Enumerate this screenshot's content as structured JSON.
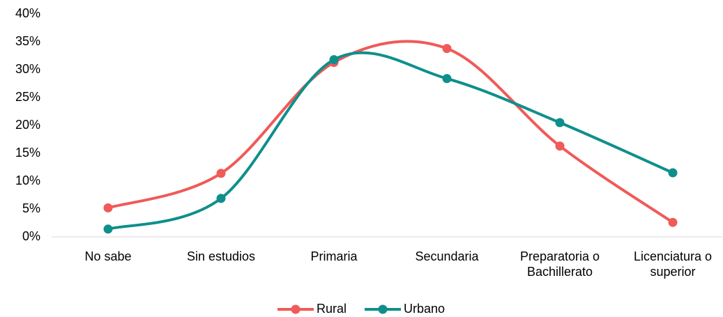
{
  "chart_data": {
    "type": "line",
    "categories": [
      "No sabe",
      "Sin estudios",
      "Primaria",
      "Secundaria",
      "Preparatoria o Bachillerato",
      "Licenciatura o superior"
    ],
    "series": [
      {
        "name": "Rural",
        "color": "#f05a57",
        "values": [
          5.2,
          11.4,
          31.3,
          33.8,
          16.3,
          2.6
        ]
      },
      {
        "name": "Urbano",
        "color": "#0e8f8c",
        "values": [
          1.4,
          6.9,
          31.8,
          28.4,
          20.5,
          11.5
        ]
      }
    ],
    "ylim": [
      0,
      40
    ],
    "yticks": [
      {
        "value": 0,
        "label": "0%"
      },
      {
        "value": 5,
        "label": "5%"
      },
      {
        "value": 10,
        "label": "10%"
      },
      {
        "value": 15,
        "label": "15%"
      },
      {
        "value": 20,
        "label": "20%"
      },
      {
        "value": 25,
        "label": "25%"
      },
      {
        "value": 30,
        "label": "30%"
      },
      {
        "value": 35,
        "label": "35%"
      },
      {
        "value": 40,
        "label": "40%"
      }
    ],
    "smooth": true,
    "grid": false,
    "legend": "bottom"
  }
}
